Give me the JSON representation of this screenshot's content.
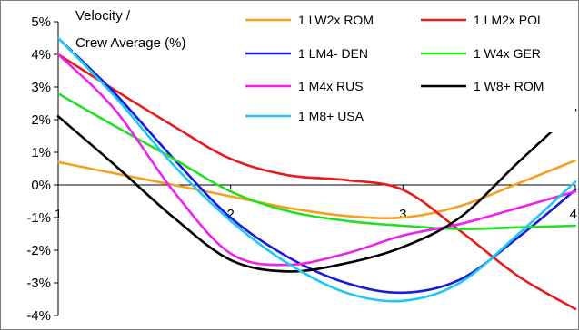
{
  "chart_data": {
    "type": "line",
    "ylabel_lines": [
      "Velocity /",
      "Crew Average (%)"
    ],
    "xlim": [
      1,
      4
    ],
    "ylim": [
      -4,
      5
    ],
    "x_ticks": [
      "1",
      "2",
      "3",
      "4"
    ],
    "y_ticks": [
      "5%",
      "4%",
      "3%",
      "2%",
      "1%",
      "0%",
      "-1%",
      "-2%",
      "-3%",
      "-4%"
    ],
    "grid": false,
    "legend_placement": "top-right",
    "series": [
      {
        "name": "1 LW2x ROM",
        "color": "#f5a020",
        "x": [
          1,
          1.33,
          1.67,
          2,
          2.33,
          2.67,
          3,
          3.33,
          3.67,
          4
        ],
        "y": [
          0.7,
          0.35,
          0.0,
          -0.35,
          -0.7,
          -0.95,
          -1.0,
          -0.65,
          0.05,
          0.75
        ]
      },
      {
        "name": "1 LM2x POL",
        "color": "#e81c1c",
        "x": [
          1,
          1.33,
          1.67,
          2,
          2.33,
          2.67,
          3,
          3.33,
          3.67,
          4
        ],
        "y": [
          4.0,
          2.9,
          1.8,
          0.8,
          0.3,
          0.15,
          -0.15,
          -1.4,
          -2.8,
          -3.8
        ]
      },
      {
        "name": "1 LM4- DEN",
        "color": "#1a1adc",
        "x": [
          1,
          1.33,
          1.67,
          2,
          2.33,
          2.67,
          3,
          3.33,
          3.67,
          4
        ],
        "y": [
          4.5,
          2.8,
          0.8,
          -1.0,
          -2.2,
          -3.0,
          -3.3,
          -2.9,
          -1.6,
          -0.15
        ]
      },
      {
        "name": "1 W4x GER",
        "color": "#22e022",
        "x": [
          1,
          1.33,
          1.67,
          2,
          2.33,
          2.67,
          3,
          3.33,
          3.67,
          4
        ],
        "y": [
          2.8,
          1.8,
          0.8,
          -0.2,
          -0.8,
          -1.1,
          -1.25,
          -1.35,
          -1.3,
          -1.25
        ]
      },
      {
        "name": "1 M4x RUS",
        "color": "#ee22ee",
        "x": [
          1,
          1.33,
          1.67,
          2,
          2.33,
          2.67,
          3,
          3.33,
          3.67,
          4
        ],
        "y": [
          4.0,
          2.3,
          -0.2,
          -2.1,
          -2.45,
          -2.1,
          -1.55,
          -1.2,
          -0.7,
          -0.2
        ]
      },
      {
        "name": "1 W8+ ROM",
        "color": "#000000",
        "x": [
          1,
          1.33,
          1.67,
          2,
          2.33,
          2.67,
          3,
          3.33,
          3.67,
          4
        ],
        "y": [
          2.1,
          0.6,
          -1.0,
          -2.3,
          -2.65,
          -2.4,
          -1.9,
          -1.0,
          0.7,
          2.3
        ]
      },
      {
        "name": "1 M8+ USA",
        "color": "#1ec8f0",
        "x": [
          1,
          1.33,
          1.67,
          2,
          2.33,
          2.67,
          3,
          3.33,
          3.67,
          4
        ],
        "y": [
          4.5,
          2.7,
          0.6,
          -1.1,
          -2.4,
          -3.3,
          -3.55,
          -3.0,
          -1.5,
          0.1
        ]
      }
    ]
  }
}
